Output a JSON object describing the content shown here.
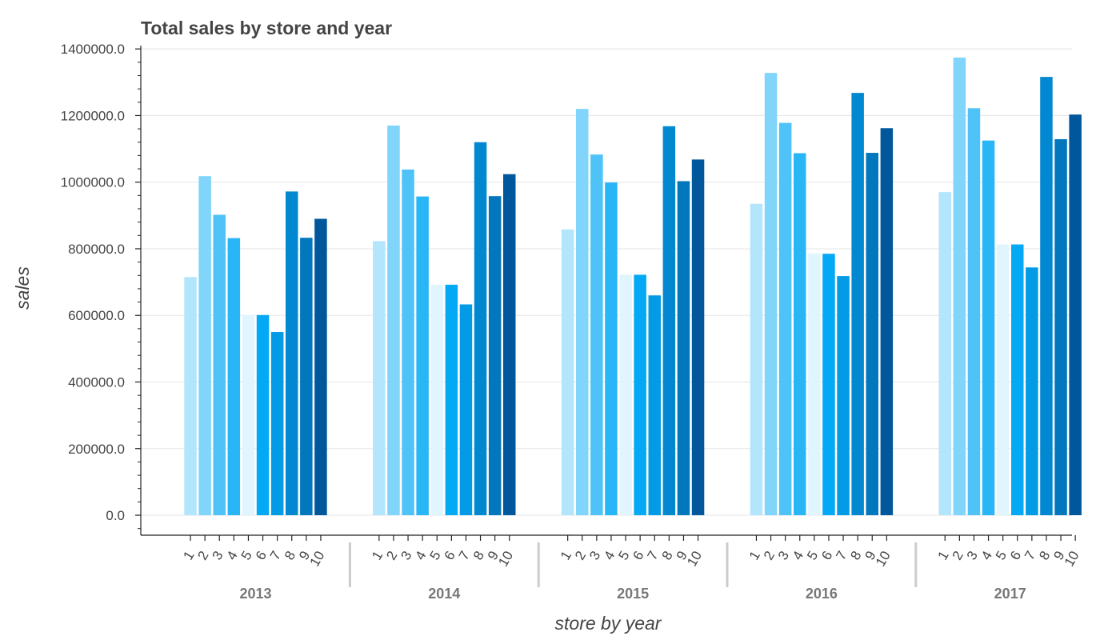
{
  "chart_data": {
    "type": "bar",
    "title": "Total sales by store and year",
    "xlabel": "store by year",
    "ylabel": "sales",
    "ylim": [
      -60000,
      1410000
    ],
    "yticks": [
      "0.0",
      "200000.0",
      "400000.0",
      "600000.0",
      "800000.0",
      "1000000.0",
      "1200000.0",
      "1400000.0"
    ],
    "ytick_values": [
      0,
      200000,
      400000,
      600000,
      800000,
      1000000,
      1200000,
      1400000
    ],
    "grid": true,
    "groups": [
      "2013",
      "2014",
      "2015",
      "2016",
      "2017"
    ],
    "categories": [
      "1",
      "2",
      "3",
      "4",
      "5",
      "6",
      "7",
      "8",
      "9",
      "10"
    ],
    "values": [
      [
        715000,
        1018000,
        902000,
        832000,
        601000,
        601000,
        550000,
        972000,
        833000,
        890000
      ],
      [
        823000,
        1170000,
        1038000,
        957000,
        692000,
        692000,
        633000,
        1120000,
        958000,
        1024000
      ],
      [
        858000,
        1220000,
        1083000,
        999000,
        722000,
        722000,
        660000,
        1168000,
        1003000,
        1068000
      ],
      [
        935000,
        1328000,
        1178000,
        1087000,
        786000,
        785000,
        718000,
        1268000,
        1088000,
        1162000
      ],
      [
        970000,
        1374000,
        1222000,
        1125000,
        813000,
        813000,
        744000,
        1316000,
        1129000,
        1203000
      ]
    ],
    "colors": [
      "#b3e5fc",
      "#81d4fa",
      "#4fc3f7",
      "#29b6f6",
      "#e1f5fe",
      "#03a9f4",
      "#039be5",
      "#0288d1",
      "#0277bd",
      "#01579b"
    ]
  }
}
